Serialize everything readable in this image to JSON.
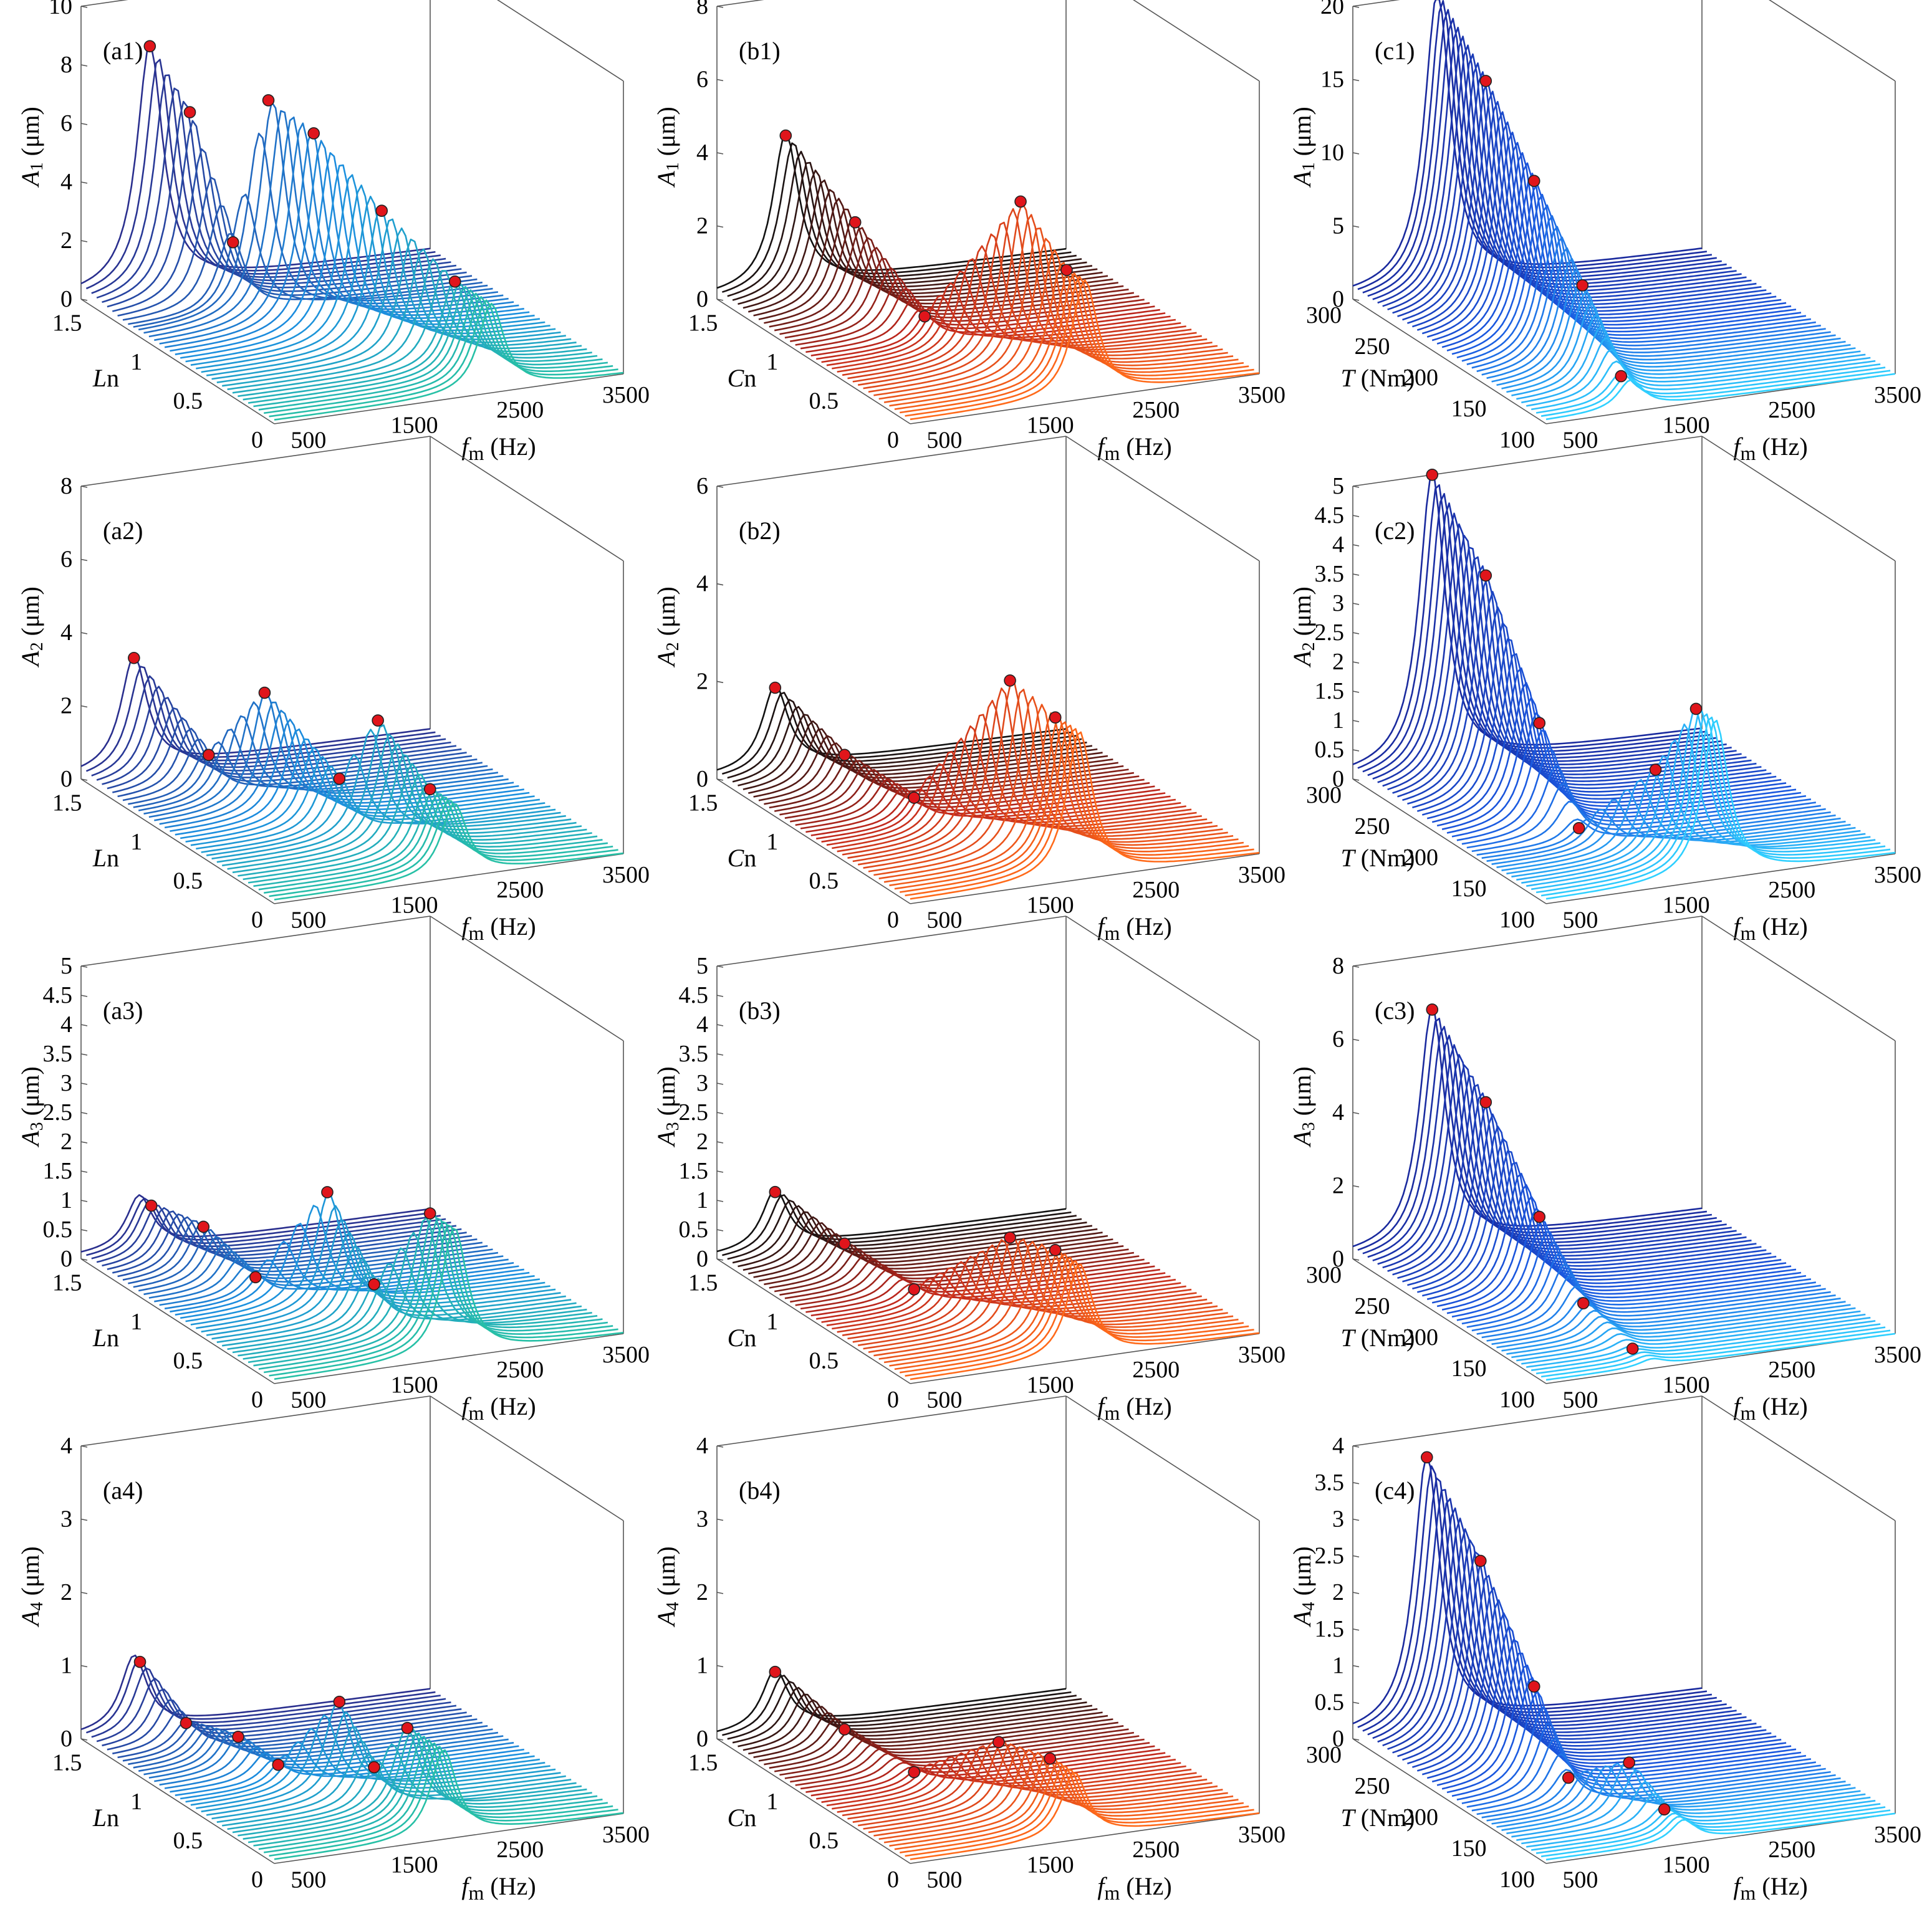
{
  "figure": {
    "x_axis_label_symbol": "f",
    "x_axis_label_sub": "m",
    "x_axis_label_unit": " (Hz)"
  },
  "chart_data": [
    {
      "id": "a1",
      "label": "(a1)",
      "type": "waterfall-3d",
      "ylabel_symbol": "A",
      "ylabel_sub": "1",
      "ylabel_unit": " (μm)",
      "zticks": [
        "0",
        "2",
        "4",
        "6",
        "8",
        "10"
      ],
      "zlim": [
        0,
        10
      ],
      "yaxis_label_it": "L",
      "yaxis_label_rest": "n",
      "yticks": [
        "0",
        "0.5",
        "1",
        "1.5"
      ],
      "ylim": [
        0,
        1.6
      ],
      "xticks": [
        "500",
        "1500",
        "2500",
        "3500"
      ],
      "xlim": [
        200,
        3500
      ],
      "palette": [
        "#2a2f8e",
        "#1c8fe0",
        "#27c0a6"
      ],
      "series_count": 38,
      "peaks": [
        {
          "y": 1.6,
          "f": 850,
          "a": 8.3
        },
        {
          "y": 1.4,
          "f": 1000,
          "a": 6.5
        },
        {
          "y": 1.2,
          "f": 1180,
          "a": 2.5
        },
        {
          "y": 1.1,
          "f": 1400,
          "a": 7.5
        },
        {
          "y": 0.9,
          "f": 1600,
          "a": 6.8
        },
        {
          "y": 0.6,
          "f": 1900,
          "a": 4.8
        },
        {
          "y": 0.3,
          "f": 2250,
          "a": 3.0
        }
      ]
    },
    {
      "id": "b1",
      "label": "(b1)",
      "type": "waterfall-3d",
      "ylabel_symbol": "A",
      "ylabel_sub": "1",
      "ylabel_unit": " (μm)",
      "zticks": [
        "0",
        "2",
        "4",
        "6",
        "8"
      ],
      "zlim": [
        0,
        8
      ],
      "yaxis_label_it": "C",
      "yaxis_label_rest": "n",
      "yticks": [
        "0",
        "0.5",
        "1",
        "1.5"
      ],
      "ylim": [
        0,
        1.6
      ],
      "xticks": [
        "500",
        "1500",
        "2500",
        "3500"
      ],
      "xlim": [
        200,
        3500
      ],
      "palette": [
        "#111111",
        "#c0271c",
        "#ff6a1a"
      ],
      "series_count": 38,
      "peaks": [
        {
          "y": 1.6,
          "f": 850,
          "a": 4.2
        },
        {
          "y": 1.2,
          "f": 1050,
          "a": 2.6
        },
        {
          "y": 0.8,
          "f": 1250,
          "a": 0.8
        },
        {
          "y": 0.4,
          "f": 1700,
          "a": 4.6
        },
        {
          "y": 0.15,
          "f": 1850,
          "a": 3.2
        }
      ]
    },
    {
      "id": "c1",
      "label": "(c1)",
      "type": "waterfall-3d",
      "ylabel_symbol": "A",
      "ylabel_sub": "1",
      "ylabel_unit": " (μm)",
      "zticks": [
        "0",
        "5",
        "10",
        "15",
        "20"
      ],
      "zlim": [
        0,
        20
      ],
      "yaxis_label_it": "T",
      "yaxis_label_rest": " (Nm)",
      "yticks": [
        "100",
        "150",
        "200",
        "250",
        "300"
      ],
      "ylim": [
        100,
        300
      ],
      "xticks": [
        "500",
        "1500",
        "2500",
        "3500"
      ],
      "xlim": [
        200,
        3500
      ],
      "palette": [
        "#1a2a9e",
        "#1a58e0",
        "#2fd0ff"
      ],
      "series_count": 40,
      "peaks": [
        {
          "y": 300,
          "f": 1000,
          "a": 20.0
        },
        {
          "y": 250,
          "f": 1000,
          "a": 16.2
        },
        {
          "y": 200,
          "f": 1000,
          "a": 11.5
        },
        {
          "y": 150,
          "f": 1000,
          "a": 6.5
        },
        {
          "y": 110,
          "f": 1000,
          "a": 2.0
        }
      ]
    },
    {
      "id": "a2",
      "label": "(a2)",
      "type": "waterfall-3d",
      "ylabel_symbol": "A",
      "ylabel_sub": "2",
      "ylabel_unit": " (μm)",
      "zticks": [
        "0",
        "2",
        "4",
        "6",
        "8"
      ],
      "zlim": [
        0,
        8
      ],
      "yaxis_label_it": "L",
      "yaxis_label_rest": "n",
      "yticks": [
        "0",
        "0.5",
        "1",
        "1.5"
      ],
      "ylim": [
        0,
        1.6
      ],
      "xticks": [
        "500",
        "1500",
        "2500",
        "3500"
      ],
      "xlim": [
        200,
        3500
      ],
      "palette": [
        "#2a2f8e",
        "#1c8fe0",
        "#27c0a6"
      ],
      "series_count": 38,
      "peaks": [
        {
          "y": 1.6,
          "f": 700,
          "a": 3.1
        },
        {
          "y": 1.2,
          "f": 950,
          "a": 1.2
        },
        {
          "y": 1.0,
          "f": 1250,
          "a": 3.2
        },
        {
          "y": 0.6,
          "f": 1500,
          "a": 1.6
        },
        {
          "y": 0.5,
          "f": 1750,
          "a": 3.3
        },
        {
          "y": 0.2,
          "f": 1900,
          "a": 2.0
        }
      ]
    },
    {
      "id": "b2",
      "label": "(b2)",
      "type": "waterfall-3d",
      "ylabel_symbol": "A",
      "ylabel_sub": "2",
      "ylabel_unit": " (μm)",
      "zticks": [
        "0",
        "2",
        "4",
        "6"
      ],
      "zlim": [
        0,
        6
      ],
      "yaxis_label_it": "C",
      "yaxis_label_rest": "n",
      "yticks": [
        "0",
        "0.5",
        "1",
        "1.5"
      ],
      "ylim": [
        0,
        1.6
      ],
      "xticks": [
        "500",
        "1500",
        "2500",
        "3500"
      ],
      "xlim": [
        200,
        3500
      ],
      "palette": [
        "#111111",
        "#c0271c",
        "#ff6a1a"
      ],
      "series_count": 38,
      "peaks": [
        {
          "y": 1.6,
          "f": 750,
          "a": 1.7
        },
        {
          "y": 1.2,
          "f": 950,
          "a": 0.9
        },
        {
          "y": 0.8,
          "f": 1150,
          "a": 0.6
        },
        {
          "y": 0.4,
          "f": 1600,
          "a": 3.5
        },
        {
          "y": 0.2,
          "f": 1800,
          "a": 3.0
        }
      ]
    },
    {
      "id": "c2",
      "label": "(c2)",
      "type": "waterfall-3d",
      "ylabel_symbol": "A",
      "ylabel_sub": "2",
      "ylabel_unit": " (μm)",
      "zticks": [
        "0",
        "0.5",
        "1",
        "1.5",
        "2",
        "2.5",
        "3",
        "3.5",
        "4",
        "4.5",
        "5"
      ],
      "zlim": [
        0,
        5
      ],
      "yaxis_label_it": "T",
      "yaxis_label_rest": " (Nm)",
      "yticks": [
        "100",
        "150",
        "200",
        "250",
        "300"
      ],
      "ylim": [
        100,
        300
      ],
      "xticks": [
        "500",
        "1500",
        "2500",
        "3500"
      ],
      "xlim": [
        200,
        3500
      ],
      "palette": [
        "#1a2a9e",
        "#1a58e0",
        "#2fd0ff"
      ],
      "series_count": 40,
      "peaks": [
        {
          "y": 300,
          "f": 950,
          "a": 5.0
        },
        {
          "y": 250,
          "f": 1000,
          "a": 3.8
        },
        {
          "y": 200,
          "f": 1050,
          "a": 1.8
        },
        {
          "y": 170,
          "f": 1150,
          "a": 0.3
        },
        {
          "y": 140,
          "f": 1600,
          "a": 1.5
        },
        {
          "y": 120,
          "f": 1800,
          "a": 2.7
        }
      ]
    },
    {
      "id": "a3",
      "label": "(a3)",
      "type": "waterfall-3d",
      "ylabel_symbol": "A",
      "ylabel_sub": "3",
      "ylabel_unit": " (μm)",
      "zticks": [
        "0",
        "0.5",
        "1",
        "1.5",
        "2",
        "2.5",
        "3",
        "3.5",
        "4",
        "4.5",
        "5"
      ],
      "zlim": [
        0,
        5
      ],
      "yaxis_label_it": "L",
      "yaxis_label_rest": "n",
      "yticks": [
        "0",
        "0.5",
        "1",
        "1.5"
      ],
      "ylim": [
        0,
        1.6
      ],
      "xticks": [
        "500",
        "1500",
        "2500",
        "3500"
      ],
      "xlim": [
        200,
        3500
      ],
      "palette": [
        "#2a2f8e",
        "#1c8fe0",
        "#27c0a6"
      ],
      "series_count": 38,
      "peaks": [
        {
          "y": 1.5,
          "f": 750,
          "a": 0.9
        },
        {
          "y": 1.2,
          "f": 900,
          "a": 0.9
        },
        {
          "y": 0.9,
          "f": 1050,
          "a": 0.4
        },
        {
          "y": 0.7,
          "f": 1500,
          "a": 2.0
        },
        {
          "y": 0.4,
          "f": 1600,
          "a": 0.8
        },
        {
          "y": 0.2,
          "f": 1900,
          "a": 2.2
        }
      ]
    },
    {
      "id": "b3",
      "label": "(b3)",
      "type": "waterfall-3d",
      "ylabel_symbol": "A",
      "ylabel_sub": "3",
      "ylabel_unit": " (μm)",
      "zticks": [
        "0",
        "0.5",
        "1",
        "1.5",
        "2",
        "2.5",
        "3",
        "3.5",
        "4",
        "4.5",
        "5"
      ],
      "zlim": [
        0,
        5
      ],
      "yaxis_label_it": "C",
      "yaxis_label_rest": "n",
      "yticks": [
        "0",
        "0.5",
        "1",
        "1.5"
      ],
      "ylim": [
        0,
        1.6
      ],
      "xticks": [
        "500",
        "1500",
        "2500",
        "3500"
      ],
      "xlim": [
        200,
        3500
      ],
      "palette": [
        "#111111",
        "#c0271c",
        "#ff6a1a"
      ],
      "series_count": 38,
      "peaks": [
        {
          "y": 1.6,
          "f": 750,
          "a": 1.0
        },
        {
          "y": 1.2,
          "f": 950,
          "a": 0.6
        },
        {
          "y": 0.8,
          "f": 1150,
          "a": 0.3
        },
        {
          "y": 0.4,
          "f": 1600,
          "a": 1.6
        },
        {
          "y": 0.2,
          "f": 1800,
          "a": 1.6
        }
      ]
    },
    {
      "id": "c3",
      "label": "(c3)",
      "type": "waterfall-3d",
      "ylabel_symbol": "A",
      "ylabel_sub": "3",
      "ylabel_unit": " (μm)",
      "zticks": [
        "0",
        "2",
        "4",
        "6",
        "8"
      ],
      "zlim": [
        0,
        8
      ],
      "yaxis_label_it": "T",
      "yaxis_label_rest": " (Nm)",
      "yticks": [
        "100",
        "150",
        "200",
        "250",
        "300"
      ],
      "ylim": [
        100,
        300
      ],
      "xticks": [
        "500",
        "1500",
        "2500",
        "3500"
      ],
      "xlim": [
        200,
        3500
      ],
      "palette": [
        "#1a2a9e",
        "#1a58e0",
        "#2fd0ff"
      ],
      "series_count": 40,
      "peaks": [
        {
          "y": 300,
          "f": 950,
          "a": 6.5
        },
        {
          "y": 250,
          "f": 1000,
          "a": 4.8
        },
        {
          "y": 200,
          "f": 1050,
          "a": 2.5
        },
        {
          "y": 160,
          "f": 1100,
          "a": 0.8
        },
        {
          "y": 120,
          "f": 1200,
          "a": 0.2
        }
      ]
    },
    {
      "id": "a4",
      "label": "(a4)",
      "type": "waterfall-3d",
      "ylabel_symbol": "A",
      "ylabel_sub": "4",
      "ylabel_unit": " (μm)",
      "zticks": [
        "0",
        "1",
        "2",
        "3",
        "4"
      ],
      "zlim": [
        0,
        4
      ],
      "yaxis_label_it": "L",
      "yaxis_label_rest": "n",
      "yticks": [
        "0",
        "0.5",
        "1",
        "1.5"
      ],
      "ylim": [
        0,
        1.6
      ],
      "xticks": [
        "500",
        "1500",
        "2500",
        "3500"
      ],
      "xlim": [
        200,
        3500
      ],
      "palette": [
        "#2a2f8e",
        "#1c8fe0",
        "#27c0a6"
      ],
      "series_count": 38,
      "peaks": [
        {
          "y": 1.55,
          "f": 700,
          "a": 1.0
        },
        {
          "y": 1.3,
          "f": 850,
          "a": 0.4
        },
        {
          "y": 1.0,
          "f": 1000,
          "a": 0.5
        },
        {
          "y": 0.8,
          "f": 1150,
          "a": 0.3
        },
        {
          "y": 0.6,
          "f": 1500,
          "a": 1.3
        },
        {
          "y": 0.4,
          "f": 1600,
          "a": 0.6
        },
        {
          "y": 0.3,
          "f": 1800,
          "a": 1.2
        }
      ]
    },
    {
      "id": "b4",
      "label": "(b4)",
      "type": "waterfall-3d",
      "ylabel_symbol": "A",
      "ylabel_sub": "4",
      "ylabel_unit": " (μm)",
      "zticks": [
        "0",
        "1",
        "2",
        "3",
        "4"
      ],
      "zlim": [
        0,
        4
      ],
      "yaxis_label_it": "C",
      "yaxis_label_rest": "n",
      "yticks": [
        "0",
        "0.5",
        "1",
        "1.5"
      ],
      "ylim": [
        0,
        1.6
      ],
      "xticks": [
        "500",
        "1500",
        "2500",
        "3500"
      ],
      "xlim": [
        200,
        3500
      ],
      "palette": [
        "#111111",
        "#c0271c",
        "#ff6a1a"
      ],
      "series_count": 38,
      "peaks": [
        {
          "y": 1.6,
          "f": 750,
          "a": 0.8
        },
        {
          "y": 1.2,
          "f": 950,
          "a": 0.4
        },
        {
          "y": 0.8,
          "f": 1150,
          "a": 0.2
        },
        {
          "y": 0.45,
          "f": 1550,
          "a": 0.9
        },
        {
          "y": 0.2,
          "f": 1750,
          "a": 0.9
        }
      ]
    },
    {
      "id": "c4",
      "label": "(c4)",
      "type": "waterfall-3d",
      "ylabel_symbol": "A",
      "ylabel_sub": "4",
      "ylabel_unit": " (μm)",
      "zticks": [
        "0",
        "0.5",
        "1",
        "1.5",
        "2",
        "2.5",
        "3",
        "3.5",
        "4"
      ],
      "zlim": [
        0,
        4
      ],
      "yaxis_label_it": "T",
      "yaxis_label_rest": " (Nm)",
      "yticks": [
        "100",
        "150",
        "200",
        "250",
        "300"
      ],
      "ylim": [
        100,
        300
      ],
      "xticks": [
        "500",
        "1500",
        "2500",
        "3500"
      ],
      "xlim": [
        200,
        3500
      ],
      "palette": [
        "#1a2a9e",
        "#1a58e0",
        "#2fd0ff"
      ],
      "series_count": 40,
      "peaks": [
        {
          "y": 300,
          "f": 900,
          "a": 3.7
        },
        {
          "y": 250,
          "f": 950,
          "a": 2.7
        },
        {
          "y": 200,
          "f": 1000,
          "a": 1.4
        },
        {
          "y": 170,
          "f": 1050,
          "a": 0.4
        },
        {
          "y": 140,
          "f": 1350,
          "a": 0.8
        },
        {
          "y": 120,
          "f": 1500,
          "a": 0.3
        }
      ]
    }
  ]
}
